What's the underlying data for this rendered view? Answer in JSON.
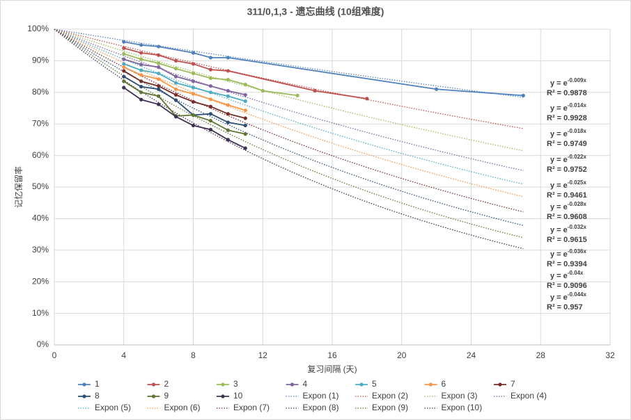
{
  "chart_data": {
    "type": "line",
    "title": "311/0,1,3 - 遗忘曲线 (10组难度)",
    "x_label": "复习间隔 (天)",
    "y_label": "记忆保留率",
    "xlim": [
      0,
      32
    ],
    "xticks": [
      0,
      4,
      8,
      12,
      16,
      20,
      24,
      28,
      32
    ],
    "ylim": [
      0,
      100
    ],
    "yticks": [
      {
        "value": 0,
        "label": "0%"
      },
      {
        "value": 10,
        "label": "10%"
      },
      {
        "value": 20,
        "label": "20%"
      },
      {
        "value": 30,
        "label": "30%"
      },
      {
        "value": 40,
        "label": "40%"
      },
      {
        "value": 50,
        "label": "50%"
      },
      {
        "value": 60,
        "label": "60%"
      },
      {
        "value": 70,
        "label": "70%"
      },
      {
        "value": 80,
        "label": "80%"
      },
      {
        "value": 90,
        "label": "90%"
      },
      {
        "value": 100,
        "label": "100%"
      }
    ],
    "grid": true,
    "legend": "bottom",
    "series": [
      {
        "name": "1",
        "color": "#4f81bd",
        "x": [
          4,
          5,
          6,
          8,
          9,
          10,
          22,
          27
        ],
        "values": [
          96,
          95,
          94.5,
          92.5,
          91,
          91,
          81,
          79
        ]
      },
      {
        "name": "2",
        "color": "#c0504d",
        "x": [
          4,
          5,
          6,
          7,
          8,
          9,
          10,
          15,
          18
        ],
        "values": [
          94,
          92.5,
          91.8,
          90,
          89,
          87.2,
          86.8,
          80.5,
          78
        ]
      },
      {
        "name": "3",
        "color": "#9bbb59",
        "x": [
          4,
          5,
          6,
          7,
          8,
          9,
          10,
          11,
          12,
          14
        ],
        "values": [
          92.2,
          90.5,
          89.2,
          87.5,
          86,
          84.5,
          84,
          82.5,
          80.5,
          79
        ]
      },
      {
        "name": "4",
        "color": "#8064a2",
        "x": [
          4,
          5,
          6,
          7,
          8,
          9,
          10,
          11
        ],
        "values": [
          90.5,
          88.8,
          88,
          85,
          83.5,
          82,
          80.5,
          79.2
        ]
      },
      {
        "name": "5",
        "color": "#4bacc6",
        "x": [
          4,
          5,
          6,
          7,
          8,
          9,
          10,
          11
        ],
        "values": [
          89,
          87,
          86,
          83,
          81.5,
          80,
          78.8,
          77.2
        ]
      },
      {
        "name": "6",
        "color": "#f79646",
        "x": [
          4,
          5,
          6,
          7,
          8,
          9,
          10,
          11
        ],
        "values": [
          88,
          85.5,
          84.2,
          81,
          79.5,
          77.8,
          76,
          74.3
        ]
      },
      {
        "name": "7",
        "color": "#772c2a",
        "x": [
          4,
          5,
          6,
          7,
          8,
          9,
          10,
          11
        ],
        "values": [
          86.8,
          83.5,
          82,
          79.2,
          77,
          75.5,
          73.2,
          71.8
        ]
      },
      {
        "name": "8",
        "color": "#2c4d75",
        "x": [
          4,
          5,
          6,
          7,
          8,
          9,
          10,
          11
        ],
        "values": [
          85,
          81.8,
          81,
          77.5,
          72.8,
          73.2,
          70.5,
          69.5
        ]
      },
      {
        "name": "9",
        "color": "#5f7530",
        "x": [
          4,
          5,
          6,
          7,
          8,
          9,
          10,
          11
        ],
        "values": [
          83.5,
          80,
          78.8,
          72.5,
          72.8,
          71,
          68,
          66.8
        ]
      },
      {
        "name": "10",
        "color": "#403152",
        "x": [
          4,
          5,
          6,
          7,
          8,
          9,
          10,
          11
        ],
        "values": [
          81.5,
          77.7,
          76.2,
          72.3,
          69.5,
          68.2,
          65,
          62.3
        ]
      }
    ],
    "equation_prefix": "y = e",
    "trendlines": [
      {
        "name": "Expon (1)",
        "color": "#4f81bd",
        "x_range": [
          0,
          27
        ],
        "coefficient": -0.009,
        "coefficient_label": "-0.009x",
        "r2": 0.9878,
        "r2_label": "R² = 0.9878"
      },
      {
        "name": "Expon (2)",
        "color": "#c0504d",
        "x_range": [
          0,
          27
        ],
        "coefficient": -0.014,
        "coefficient_label": "-0.014x",
        "r2": 0.9928,
        "r2_label": "R² = 0.9928"
      },
      {
        "name": "Expon (3)",
        "color": "#9bbb59",
        "x_range": [
          0,
          27
        ],
        "coefficient": -0.018,
        "coefficient_label": "-0.018x",
        "r2": 0.9749,
        "r2_label": "R² = 0.9749"
      },
      {
        "name": "Expon (4)",
        "color": "#8064a2",
        "x_range": [
          0,
          27
        ],
        "coefficient": -0.022,
        "coefficient_label": "-0.022x",
        "r2": 0.9752,
        "r2_label": "R² = 0.9752"
      },
      {
        "name": "Expon (5)",
        "color": "#4bacc6",
        "x_range": [
          0,
          27
        ],
        "coefficient": -0.025,
        "coefficient_label": "-0.025x",
        "r2": 0.9461,
        "r2_label": "R² = 0.9461"
      },
      {
        "name": "Expon (6)",
        "color": "#f79646",
        "x_range": [
          0,
          27
        ],
        "coefficient": -0.028,
        "coefficient_label": "-0.028x",
        "r2": 0.9608,
        "r2_label": "R² = 0.9608"
      },
      {
        "name": "Expon (7)",
        "color": "#772c2a",
        "x_range": [
          0,
          27
        ],
        "coefficient": -0.032,
        "coefficient_label": "-0.032x",
        "r2": 0.9615,
        "r2_label": "R² = 0.9615"
      },
      {
        "name": "Expon (8)",
        "color": "#2c4d75",
        "x_range": [
          0,
          27
        ],
        "coefficient": -0.036,
        "coefficient_label": "-0.036x",
        "r2": 0.9394,
        "r2_label": "R² = 0.9394"
      },
      {
        "name": "Expon (9)",
        "color": "#5f7530",
        "x_range": [
          0,
          27
        ],
        "coefficient": -0.04,
        "coefficient_label": "-0.04x",
        "r2": 0.9096,
        "r2_label": "R² = 0.9096"
      },
      {
        "name": "Expon (10)",
        "color": "#403152",
        "x_range": [
          0,
          27
        ],
        "coefficient": -0.044,
        "coefficient_label": "-0.044x",
        "r2": 0.957,
        "r2_label": "R² = 0.957"
      }
    ]
  }
}
